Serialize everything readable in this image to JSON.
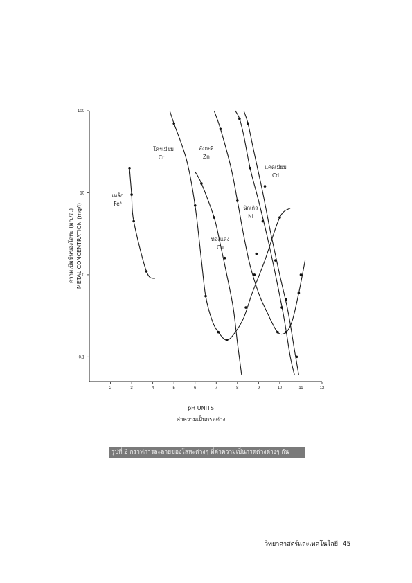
{
  "chart_data": {
    "type": "line",
    "x_label_en": "pH UNITS",
    "x_label_th": "ค่าความเป็นกรดด่าง",
    "y_label_en": "METAL CONCENTRATION  (mg/l)",
    "y_label_th": "ความเข้มข้นของโลหะ  (มก./ล.)",
    "x_ticks": [
      "2",
      "3",
      "4",
      "5",
      "6",
      "7",
      "8",
      "9",
      "10",
      "11",
      "12"
    ],
    "y_ticks": [
      "100",
      "10",
      "1.0",
      "0.1"
    ],
    "xlim": [
      1,
      12
    ],
    "ylim": [
      0.05,
      100
    ],
    "y_scale": "log",
    "series": [
      {
        "key": "fe",
        "name_th": "เหล็ก",
        "name_en": "Fe³",
        "points": [
          [
            2.9,
            20
          ],
          [
            3.0,
            9.5
          ],
          [
            3.1,
            4.5
          ],
          [
            3.7,
            1.1
          ],
          [
            4.1,
            0.9
          ]
        ],
        "markers": [
          [
            2.9,
            20
          ],
          [
            3.0,
            9.5
          ],
          [
            3.1,
            4.5
          ],
          [
            3.7,
            1.1
          ]
        ]
      },
      {
        "key": "cr",
        "name_th": "โครเมียม",
        "name_en": "Cr",
        "points": [
          [
            4.8,
            100
          ],
          [
            5.0,
            70
          ],
          [
            5.6,
            25
          ],
          [
            6.0,
            7
          ],
          [
            6.3,
            1.5
          ],
          [
            6.5,
            0.55
          ],
          [
            6.8,
            0.28
          ],
          [
            7.1,
            0.2
          ],
          [
            7.5,
            0.16
          ],
          [
            7.9,
            0.2
          ],
          [
            8.3,
            0.3
          ],
          [
            8.7,
            0.6
          ],
          [
            9.3,
            1.5
          ],
          [
            10.0,
            5
          ],
          [
            10.5,
            6.5
          ]
        ],
        "markers": [
          [
            5.0,
            70
          ],
          [
            6.0,
            7
          ],
          [
            6.5,
            0.55
          ],
          [
            7.1,
            0.2
          ],
          [
            7.5,
            0.16
          ],
          [
            8.4,
            0.4
          ],
          [
            8.9,
            1.8
          ],
          [
            10.0,
            5
          ]
        ]
      },
      {
        "key": "cu",
        "name_th": "ทองแดง",
        "name_en": "Cu",
        "points": [
          [
            6.0,
            18
          ],
          [
            6.3,
            13
          ],
          [
            6.9,
            5
          ],
          [
            7.2,
            2.3
          ],
          [
            7.5,
            1.0
          ],
          [
            7.8,
            0.4
          ],
          [
            8.0,
            0.15
          ],
          [
            8.2,
            0.06
          ]
        ],
        "markers": [
          [
            6.3,
            13
          ],
          [
            6.9,
            5
          ],
          [
            7.4,
            1.6
          ]
        ]
      },
      {
        "key": "zn",
        "name_th": "สังกะสี",
        "name_en": "Zn",
        "points": [
          [
            6.9,
            100
          ],
          [
            7.2,
            60
          ],
          [
            7.7,
            20
          ],
          [
            8.0,
            8
          ],
          [
            8.3,
            3
          ],
          [
            8.6,
            1.3
          ],
          [
            9.0,
            0.6
          ],
          [
            9.4,
            0.35
          ],
          [
            9.9,
            0.2
          ],
          [
            10.3,
            0.2
          ],
          [
            10.6,
            0.28
          ],
          [
            10.9,
            0.6
          ],
          [
            11.2,
            1.5
          ]
        ],
        "markers": [
          [
            7.2,
            60
          ],
          [
            8.0,
            8
          ],
          [
            8.8,
            1.0
          ],
          [
            9.9,
            0.2
          ],
          [
            10.3,
            0.2
          ],
          [
            10.9,
            0.6
          ],
          [
            11.0,
            1.0
          ]
        ]
      },
      {
        "key": "ni",
        "name_th": "นิกเกิล",
        "name_en": "Ni",
        "points": [
          [
            7.9,
            100
          ],
          [
            8.1,
            80
          ],
          [
            8.3,
            50
          ],
          [
            8.6,
            20
          ],
          [
            9.0,
            8
          ],
          [
            9.4,
            3
          ],
          [
            9.8,
            1
          ],
          [
            10.2,
            0.3
          ],
          [
            10.5,
            0.1
          ],
          [
            10.7,
            0.06
          ]
        ],
        "markers": [
          [
            8.1,
            80
          ],
          [
            8.6,
            20
          ],
          [
            9.2,
            4.5
          ],
          [
            10.1,
            0.4
          ]
        ]
      },
      {
        "key": "cd",
        "name_th": "แคดเมียม",
        "name_en": "Cd",
        "points": [
          [
            8.3,
            100
          ],
          [
            8.5,
            70
          ],
          [
            8.8,
            30
          ],
          [
            9.2,
            10
          ],
          [
            9.6,
            3
          ],
          [
            10.0,
            1
          ],
          [
            10.4,
            0.35
          ],
          [
            10.7,
            0.12
          ],
          [
            10.9,
            0.06
          ]
        ],
        "markers": [
          [
            8.5,
            70
          ],
          [
            9.3,
            12
          ],
          [
            9.8,
            1.5
          ],
          [
            10.3,
            0.5
          ],
          [
            10.8,
            0.1
          ]
        ]
      }
    ]
  },
  "caption": "รูปที่ 2 กราฟการละลายของโลหะต่างๆ ที่ค่าความเป็นกรดด่างต่างๆ กัน",
  "footer": {
    "journal": "วิทยาศาสตร์และเทคโนโลยี",
    "page": "45"
  }
}
